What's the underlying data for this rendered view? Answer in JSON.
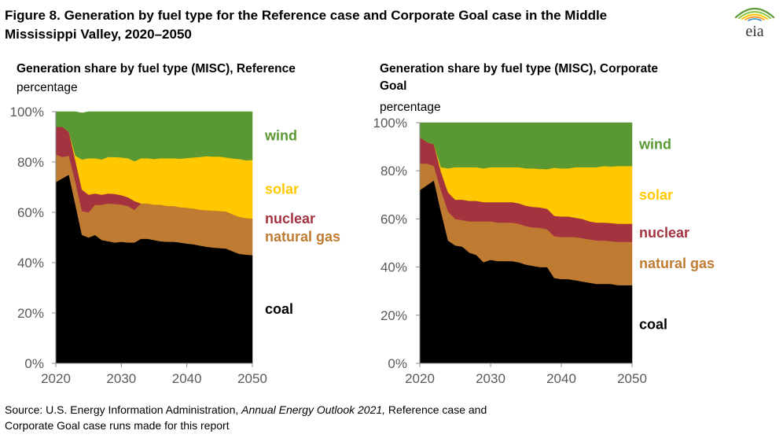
{
  "figure": {
    "title_line1": "Figure 8. Generation by fuel type for the Reference case and Corporate Goal case in the Middle",
    "title_line2": "Mississippi Valley, 2020–2050"
  },
  "logo": {
    "text": "eia",
    "icon": "eia-logo-icon"
  },
  "source": {
    "prefix": "Source: U.S. Energy Information Administration, ",
    "italic": "Annual Energy Outlook 2021,",
    "suffix_line1": " Reference case and",
    "line2": "Corporate Goal case runs made for this report"
  },
  "colors": {
    "coal": "#000000",
    "natural_gas": "#BF7B31",
    "nuclear": "#A3333F",
    "solar": "#FFC800",
    "wind": "#5A9834",
    "axis_text": "#595959"
  },
  "panels": [
    {
      "title_line1": "Generation share by fuel type (MISC), Reference",
      "title_line2": "",
      "subtitle": "percentage"
    },
    {
      "title_line1": "Generation share by fuel type (MISC), Corporate",
      "title_line2": "Goal",
      "subtitle": "percentage"
    }
  ],
  "chart_data": [
    {
      "type": "area",
      "stacked": true,
      "title": "Generation share by fuel type (MISC), Reference",
      "ylabel": "percentage",
      "xlim": [
        2020,
        2050
      ],
      "ylim": [
        0,
        100
      ],
      "x_ticks": [
        2020,
        2030,
        2040,
        2050
      ],
      "y_ticks": [
        0,
        20,
        40,
        60,
        80,
        100
      ],
      "y_tick_labels": [
        "0%",
        "20%",
        "40%",
        "60%",
        "80%",
        "100%"
      ],
      "legend_placement": "right",
      "x": [
        2020,
        2021,
        2022,
        2023,
        2024,
        2025,
        2026,
        2027,
        2028,
        2029,
        2030,
        2031,
        2032,
        2033,
        2034,
        2035,
        2036,
        2037,
        2038,
        2039,
        2040,
        2041,
        2042,
        2043,
        2044,
        2045,
        2046,
        2047,
        2048,
        2049,
        2050
      ],
      "series": [
        {
          "name": "coal",
          "values": [
            72,
            73.5,
            75,
            63,
            51,
            50,
            51,
            49,
            48.5,
            48,
            48.3,
            48,
            48,
            49.5,
            49.5,
            49,
            48.5,
            48.3,
            48.3,
            48,
            47.6,
            47.3,
            46.8,
            46.3,
            46,
            45.8,
            45.6,
            44.5,
            43.5,
            43.2,
            43
          ]
        },
        {
          "name": "natural gas",
          "values": [
            11,
            8.5,
            7.5,
            9,
            9.5,
            10,
            12,
            14,
            15,
            15.3,
            14.8,
            14.5,
            13,
            14,
            14,
            14,
            14.5,
            14.2,
            14.2,
            14,
            14.2,
            14.2,
            14.2,
            14.5,
            14.7,
            14.7,
            14.7,
            14.7,
            14.7,
            14.5,
            14.5
          ]
        },
        {
          "name": "nuclear",
          "values": [
            11,
            12,
            9.5,
            8.5,
            8.5,
            7,
            4.5,
            4,
            4,
            4,
            3.7,
            3.5,
            3.5,
            0,
            0,
            0,
            0,
            0,
            0,
            0,
            0,
            0,
            0,
            0,
            0,
            0,
            0,
            0,
            0,
            0,
            0
          ]
        },
        {
          "name": "solar",
          "values": [
            0,
            0,
            0,
            2,
            12,
            14.5,
            14,
            14,
            14.5,
            14.7,
            15,
            15.5,
            15.8,
            18,
            18,
            18.2,
            18.5,
            19,
            19,
            19.3,
            19.8,
            20.3,
            21,
            21.5,
            21.5,
            21.7,
            21.5,
            22.2,
            23,
            23,
            23.3
          ]
        },
        {
          "name": "wind",
          "values": [
            6,
            6,
            8,
            17.5,
            18.5,
            18.5,
            18.5,
            19,
            18,
            18,
            18.2,
            18.5,
            19.7,
            18.5,
            18.5,
            18.8,
            18.5,
            18.5,
            18.5,
            18.7,
            18.4,
            18.2,
            18,
            17.7,
            17.8,
            17.8,
            18.2,
            18.6,
            18.8,
            19.3,
            19.2
          ]
        }
      ]
    },
    {
      "type": "area",
      "stacked": true,
      "title": "Generation share by fuel type (MISC), Corporate Goal",
      "ylabel": "percentage",
      "xlim": [
        2020,
        2050
      ],
      "ylim": [
        0,
        100
      ],
      "x_ticks": [
        2020,
        2030,
        2040,
        2050
      ],
      "y_ticks": [
        0,
        20,
        40,
        60,
        80,
        100
      ],
      "y_tick_labels": [
        "0%",
        "20%",
        "40%",
        "60%",
        "80%",
        "100%"
      ],
      "legend_placement": "right",
      "x": [
        2020,
        2021,
        2022,
        2023,
        2024,
        2025,
        2026,
        2027,
        2028,
        2029,
        2030,
        2031,
        2032,
        2033,
        2034,
        2035,
        2036,
        2037,
        2038,
        2039,
        2040,
        2041,
        2042,
        2043,
        2044,
        2045,
        2046,
        2047,
        2048,
        2049,
        2050
      ],
      "series": [
        {
          "name": "coal",
          "values": [
            72,
            74,
            76,
            63,
            51,
            49,
            48.5,
            46,
            45,
            42,
            43,
            42.5,
            42.5,
            42.5,
            42,
            41,
            40.5,
            40,
            40,
            35.5,
            35,
            35,
            34.5,
            34,
            33.5,
            33,
            33,
            33,
            32.5,
            32.5,
            32.5
          ]
        },
        {
          "name": "natural gas",
          "values": [
            11,
            9,
            6,
            9,
            12,
            11,
            11,
            13,
            14,
            17,
            16,
            16,
            16,
            16,
            16,
            16,
            16,
            16.3,
            15.7,
            17.3,
            17.5,
            17.5,
            18,
            18,
            18,
            18,
            18,
            17.8,
            18,
            18,
            18
          ]
        },
        {
          "name": "nuclear",
          "values": [
            11,
            9,
            9,
            7.5,
            8,
            8,
            8.5,
            8.5,
            8.5,
            8,
            8,
            8.5,
            8.5,
            8.5,
            8.5,
            8.5,
            8.5,
            8.5,
            8.5,
            8.5,
            8.5,
            8.5,
            8,
            8,
            7.5,
            7.5,
            7.5,
            7.5,
            7.5,
            7.5,
            7.5
          ]
        },
        {
          "name": "solar",
          "values": [
            0,
            0,
            0,
            2,
            10,
            13.5,
            13.5,
            14,
            14,
            14,
            14.5,
            14.5,
            14.5,
            14.5,
            15,
            15.5,
            16,
            16,
            16.5,
            20,
            20,
            20,
            21,
            21.5,
            22.5,
            23,
            23.5,
            23.5,
            24,
            24,
            24
          ]
        },
        {
          "name": "wind",
          "values": [
            6,
            8,
            9,
            18.5,
            19,
            18.5,
            18.5,
            18.5,
            18.5,
            19,
            18.5,
            18.5,
            18.5,
            18.5,
            18.5,
            19,
            19,
            19.2,
            19.3,
            18.7,
            19,
            19,
            18.5,
            18.5,
            18.5,
            18.5,
            18,
            18.2,
            18,
            18,
            18
          ]
        }
      ]
    }
  ]
}
